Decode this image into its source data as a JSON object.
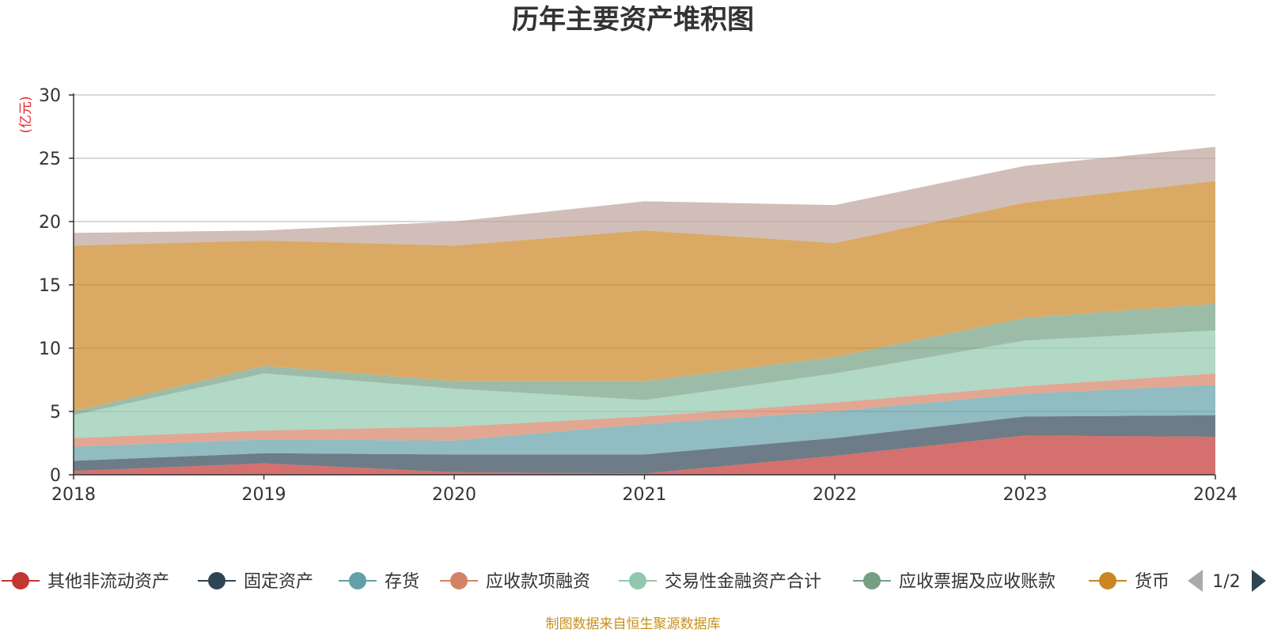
{
  "chart_data": {
    "type": "area",
    "stacked": true,
    "title": "历年主要资产堆积图",
    "ylabel": "(亿元)",
    "ylim": [
      0,
      30
    ],
    "y_ticks": [
      "0",
      "5",
      "10",
      "15",
      "20",
      "25",
      "30"
    ],
    "categories": [
      "2018",
      "2019",
      "2020",
      "2021",
      "2022",
      "2023",
      "2024"
    ],
    "grid": true,
    "legend_position": "bottom",
    "series": [
      {
        "name": "其他非流动资产",
        "color": "#c23531",
        "values": [
          0.3,
          0.9,
          0.2,
          0.1,
          1.5,
          3.1,
          3.0
        ]
      },
      {
        "name": "固定资产",
        "color": "#2f4554",
        "values": [
          0.8,
          0.8,
          1.4,
          1.5,
          1.4,
          1.5,
          1.7
        ]
      },
      {
        "name": "存货",
        "color": "#61a0a8",
        "values": [
          1.1,
          1.1,
          1.1,
          2.4,
          2.1,
          1.8,
          2.4
        ]
      },
      {
        "name": "应收款项融资",
        "color": "#d48265",
        "values": [
          0.7,
          0.7,
          1.1,
          0.6,
          0.7,
          0.6,
          0.9
        ]
      },
      {
        "name": "交易性金融资产合计",
        "color": "#91c7ae",
        "values": [
          1.8,
          4.5,
          3.0,
          1.3,
          2.3,
          3.6,
          3.4
        ]
      },
      {
        "name": "应收票据及应收账款",
        "color": "#749f83",
        "values": [
          0.3,
          0.6,
          0.6,
          1.5,
          1.3,
          1.8,
          2.1
        ]
      },
      {
        "name": "货币",
        "color": "#ca8622",
        "values": [
          13.1,
          9.9,
          10.7,
          11.9,
          9.0,
          9.1,
          9.7
        ]
      },
      {
        "name": "",
        "color": "#bda29a",
        "values": [
          1.0,
          0.8,
          1.9,
          2.3,
          3.0,
          2.9,
          2.7
        ]
      }
    ]
  },
  "legend": {
    "items": [
      "其他非流动资产",
      "固定资产",
      "存货",
      "应收款项融资",
      "交易性金融资产合计",
      "应收票据及应收账款",
      "货币"
    ],
    "page": "1/2"
  },
  "source": "制图数据来自恒生聚源数据库"
}
